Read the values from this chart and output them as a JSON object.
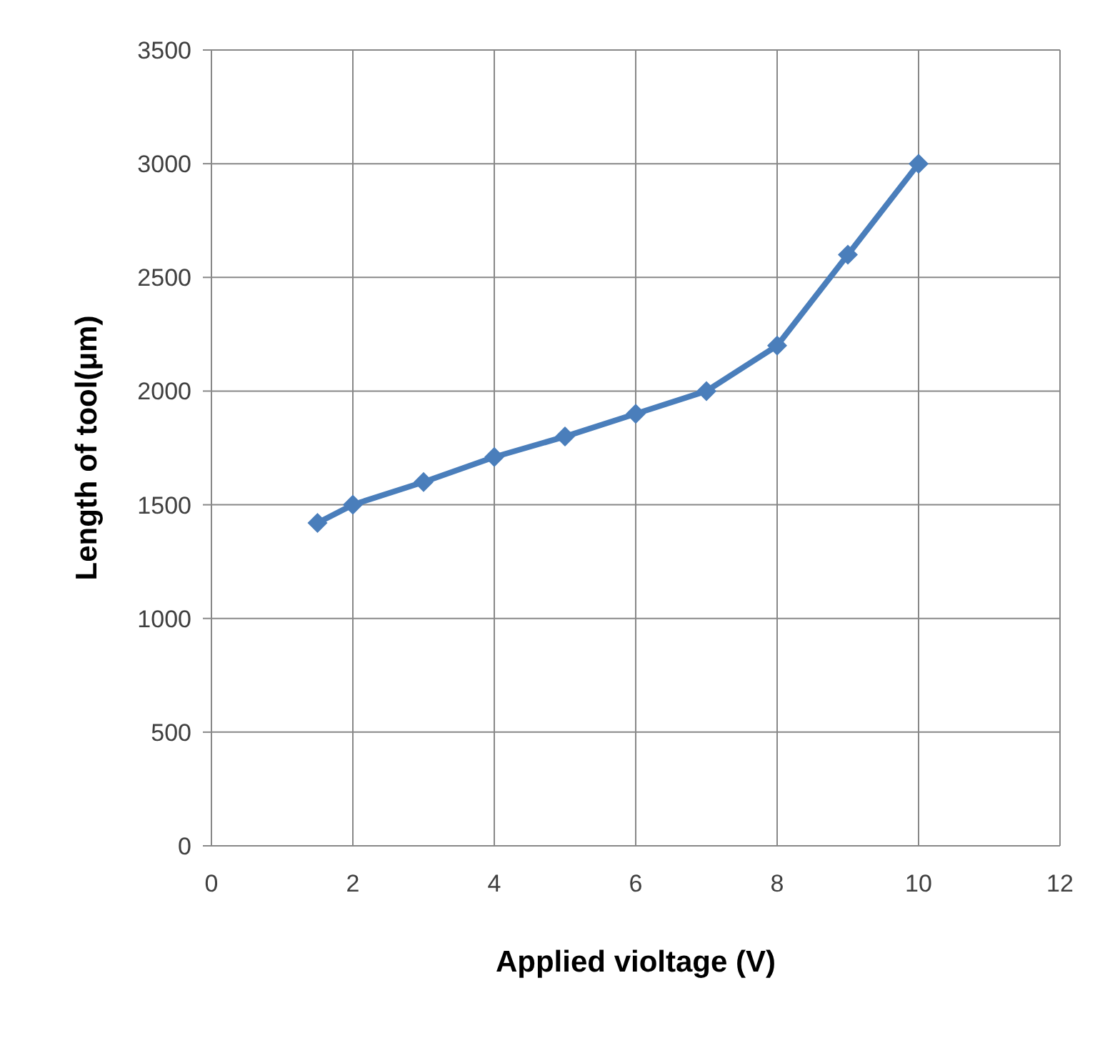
{
  "chart_data": {
    "type": "line",
    "xlabel": "Applied violtage (V)",
    "ylabel": "Length of tool(μm)",
    "x": [
      1.5,
      2,
      3,
      4,
      5,
      6,
      7,
      8,
      9,
      10
    ],
    "series": [
      {
        "color": "#4a7ebb",
        "values": [
          1420,
          1500,
          1600,
          1710,
          1800,
          1900,
          2000,
          2200,
          2600,
          3000
        ]
      }
    ],
    "xlim": [
      0,
      12
    ],
    "xticks": [
      0,
      2,
      4,
      6,
      8,
      10,
      12
    ],
    "ylim": [
      0,
      3500
    ],
    "yticks": [
      0,
      500,
      1000,
      1500,
      2000,
      2500,
      3000,
      3500
    ],
    "grid": true,
    "legend": false,
    "marker": "diamond",
    "line_style": "solid"
  }
}
